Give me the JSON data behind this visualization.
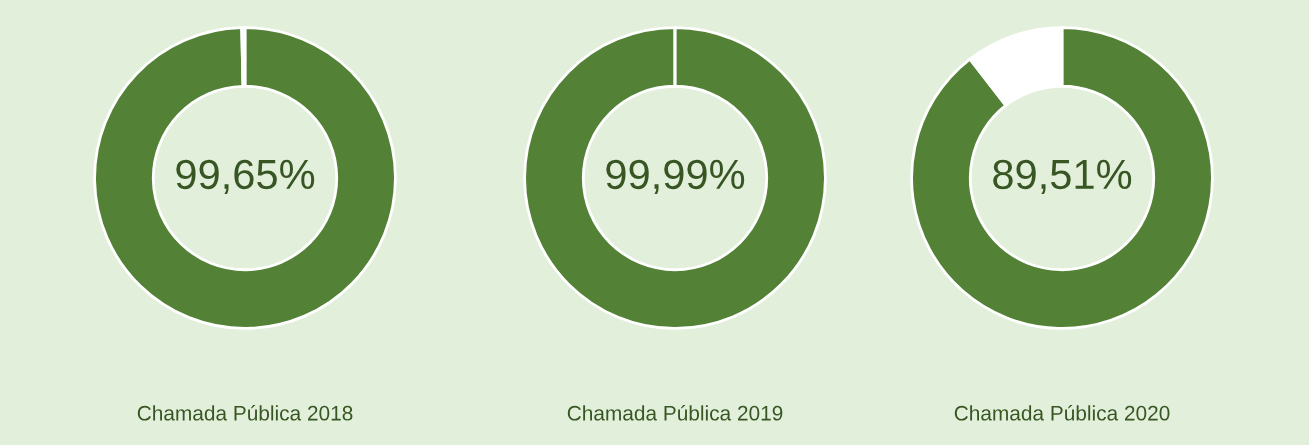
{
  "chart_data": [
    {
      "type": "donut",
      "title": "Chamada Pública 2018",
      "categories": [
        null,
        null
      ],
      "values": [
        99.65,
        0.35
      ],
      "colors": [
        "#538135",
        "#ffffff"
      ],
      "value_labels": [
        "99,65%",
        null
      ]
    },
    {
      "type": "donut",
      "title": "Chamada Pública 2019",
      "categories": [
        null,
        null
      ],
      "values": [
        99.99,
        0.01
      ],
      "colors": [
        "#538135",
        "#ffffff"
      ],
      "value_labels": [
        "99,99%",
        null
      ]
    },
    {
      "type": "donut",
      "title": "Chamada Pública 2020",
      "categories": [
        null,
        null
      ],
      "values": [
        89.51,
        10.49
      ],
      "colors": [
        "#538135",
        "#ffffff"
      ],
      "value_labels": [
        "89,51%",
        null
      ]
    }
  ]
}
